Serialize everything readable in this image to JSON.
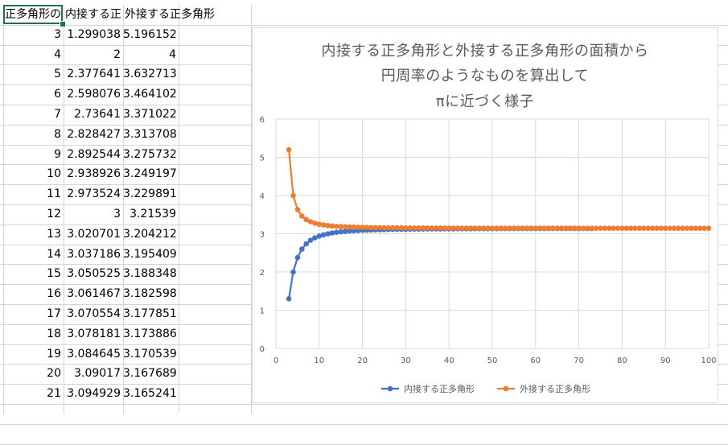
{
  "sheet": {
    "headers": [
      "正多角形の",
      "内接する正",
      "外接する正多角形"
    ],
    "rows": [
      [
        "3",
        "1.299038",
        "5.196152"
      ],
      [
        "4",
        "2",
        "4"
      ],
      [
        "5",
        "2.377641",
        "3.632713"
      ],
      [
        "6",
        "2.598076",
        "3.464102"
      ],
      [
        "7",
        "2.73641",
        "3.371022"
      ],
      [
        "8",
        "2.828427",
        "3.313708"
      ],
      [
        "9",
        "2.892544",
        "3.275732"
      ],
      [
        "10",
        "2.938926",
        "3.249197"
      ],
      [
        "11",
        "2.973524",
        "3.229891"
      ],
      [
        "12",
        "3",
        "3.21539"
      ],
      [
        "13",
        "3.020701",
        "3.204212"
      ],
      [
        "14",
        "3.037186",
        "3.195409"
      ],
      [
        "15",
        "3.050525",
        "3.188348"
      ],
      [
        "16",
        "3.061467",
        "3.182598"
      ],
      [
        "17",
        "3.070554",
        "3.177851"
      ],
      [
        "18",
        "3.078181",
        "3.173886"
      ],
      [
        "19",
        "3.084645",
        "3.170539"
      ],
      [
        "20",
        "3.09017",
        "3.167689"
      ],
      [
        "21",
        "3.094929",
        "3.165241"
      ]
    ]
  },
  "chart_data": {
    "type": "line",
    "title_lines": [
      "内接する正多角形と外接する正多角形の面積から",
      "円周率のようなものを算出して",
      "πに近づく様子"
    ],
    "xlim": [
      0,
      100
    ],
    "ylim": [
      0,
      6
    ],
    "xticks": [
      "0",
      "10",
      "20",
      "30",
      "40",
      "50",
      "60",
      "70",
      "80",
      "90",
      "100"
    ],
    "yticks": [
      "0",
      "1",
      "2",
      "3",
      "4",
      "5",
      "6"
    ],
    "grid": true,
    "legend_position": "bottom",
    "series": [
      {
        "name": "内接する正多角形",
        "color": "#4472c4",
        "n_start": 3,
        "values": [
          1.299038,
          2,
          2.377641,
          2.598076,
          2.73641,
          2.828427,
          2.892544,
          2.938926,
          2.973524,
          3,
          3.020701,
          3.037186,
          3.050525,
          3.061467,
          3.070554,
          3.078181,
          3.084645,
          3.09017,
          3.094929,
          3.099058,
          3.102663,
          3.105829,
          3.108624,
          3.111104,
          3.113315,
          3.115293,
          3.11707,
          3.118675,
          3.120126,
          3.121445,
          3.122645,
          3.123742,
          3.124745,
          3.125665,
          3.126511,
          3.127292,
          3.128013,
          3.128679,
          3.129297,
          3.12987,
          3.130403,
          3.1309,
          3.131363,
          3.131795,
          3.132199,
          3.132578,
          3.132933,
          3.133266,
          3.13358,
          3.133874,
          3.134152,
          3.134414,
          3.134661,
          3.134895,
          3.135116,
          3.135325,
          3.135524,
          3.135712,
          3.135891,
          3.13606,
          3.136221,
          3.136375,
          3.136521,
          3.136661,
          3.136793,
          3.13692,
          3.137042,
          3.137157,
          3.137268,
          3.137374,
          3.137475
        ]
      },
      {
        "name": "外接する正多角形",
        "color": "#ed7d31",
        "n_start": 3,
        "values": [
          5.196152,
          4,
          3.632713,
          3.464102,
          3.371022,
          3.313708,
          3.275732,
          3.249197,
          3.229891,
          3.21539,
          3.204212,
          3.195409,
          3.188348,
          3.182598,
          3.177851,
          3.173886,
          3.170539,
          3.167689,
          3.165241,
          3.163123,
          3.16128,
          3.159666,
          3.158246,
          3.15699,
          3.155874,
          3.154879,
          3.153987,
          3.153185,
          3.152462,
          3.151807,
          3.151213,
          3.150672,
          3.150178,
          3.149727,
          3.149313,
          3.148932,
          3.148582,
          3.148259,
          3.14796,
          3.147683,
          3.147427,
          3.147189,
          3.146967,
          3.146761,
          3.146568,
          3.146388,
          3.14622,
          3.146062,
          3.145914,
          3.145775,
          3.145644,
          3.145521,
          3.145405,
          3.145296,
          3.145192,
          3.145095,
          3.145002,
          3.144915,
          3.144832,
          3.144754,
          3.144679,
          3.144608,
          3.144541,
          3.144477,
          3.144416,
          3.144358,
          3.144303,
          3.14425,
          3.1442,
          3.144152,
          3.144106,
          3.144062,
          3.14402,
          3.14398,
          3.143942,
          3.143905,
          3.14387,
          3.143836,
          3.143804,
          3.143773,
          3.143743,
          3.143715,
          3.143687,
          3.143661,
          3.143636,
          3.143611,
          3.143588,
          3.143565,
          3.143543,
          3.143522,
          3.143502,
          3.143483,
          3.143464,
          3.143446,
          3.143428,
          3.143411,
          3.143395,
          3.143379
        ]
      }
    ]
  }
}
